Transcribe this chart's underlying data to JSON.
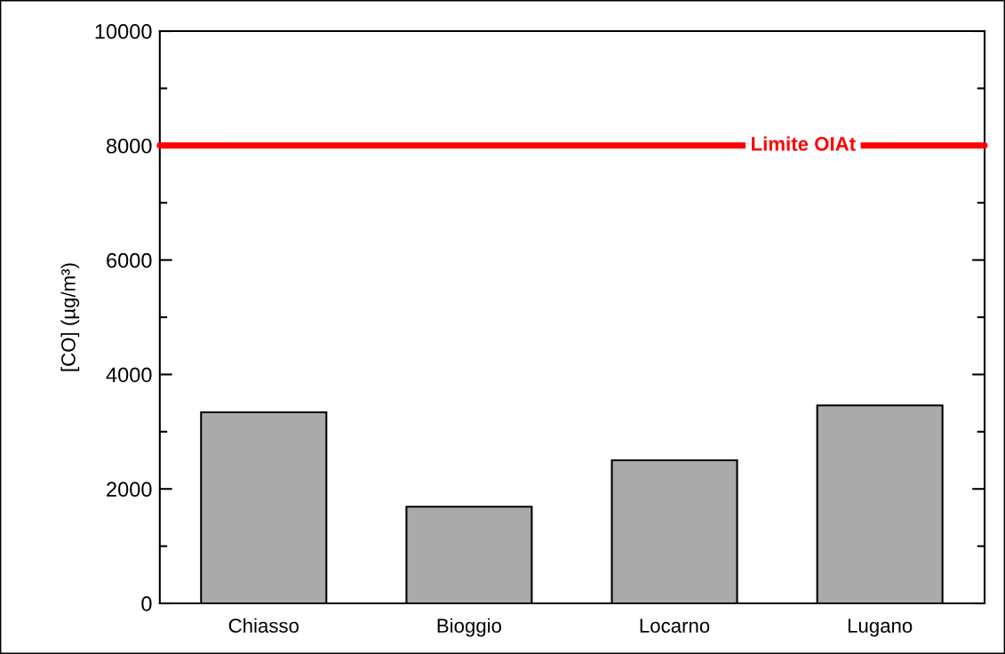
{
  "chart_data": {
    "type": "bar",
    "categories": [
      "Chiasso",
      "Bioggio",
      "Locarno",
      "Lugano"
    ],
    "values": [
      3340,
      1690,
      2500,
      3460
    ],
    "color": "#aaaaaa",
    "ylabel": "[CO] (µg/m³)",
    "ylim": [
      0,
      10000
    ],
    "yticks": [
      0,
      {
        "value": 1000,
        "label": null
      },
      2000,
      {
        "value": 3000,
        "label": null
      },
      4000,
      {
        "value": 5000,
        "label": null
      },
      6000,
      {
        "value": 7000,
        "label": null
      },
      8000,
      {
        "value": 9000,
        "label": null
      },
      10000
    ],
    "ref_lines": [
      {
        "axis": "y",
        "value": 8000,
        "label": "Limite OIAt",
        "color": "#ff0000"
      }
    ]
  }
}
